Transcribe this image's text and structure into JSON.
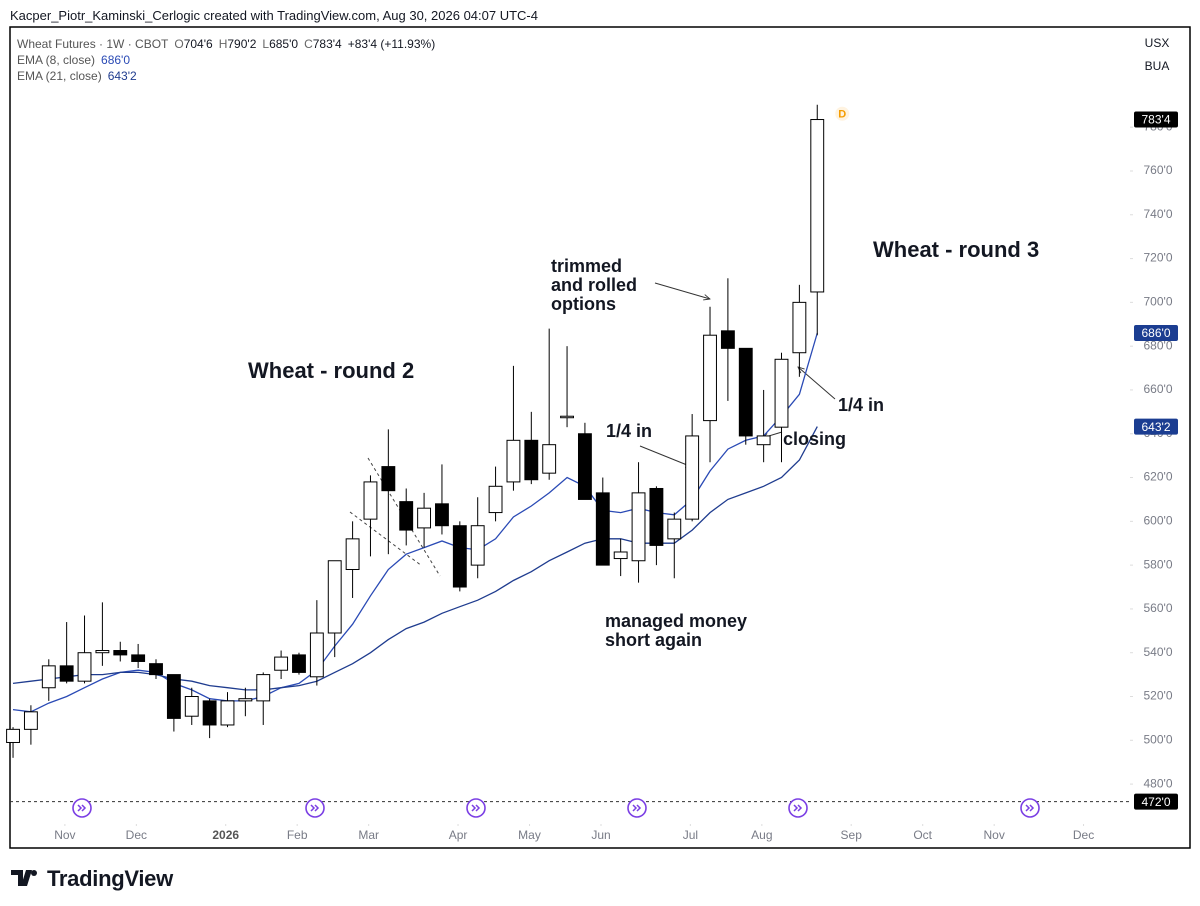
{
  "header": {
    "credit": "Kacper_Piotr_Kaminski_Cerlogic created with TradingView.com, Aug 30, 2026 04:07 UTC-4"
  },
  "chart_data": {
    "type": "candlestick",
    "symbol": "Wheat Futures · 1W · CBOT",
    "ohlc_legend": [
      {
        "key": "O",
        "text": "704'6"
      },
      {
        "key": "H",
        "text": "790'2"
      },
      {
        "key": "L",
        "text": "685'0"
      },
      {
        "key": "C",
        "text": "783'4"
      }
    ],
    "change": "+83'4 (+11.93%)",
    "up_color": "#ffffff",
    "down_color": "#000000",
    "wick_color": "#000000",
    "open": [
      499,
      505,
      524,
      534,
      527,
      540,
      541,
      539,
      535,
      530,
      511,
      518,
      507,
      518,
      518,
      532,
      539,
      529,
      549,
      578,
      601,
      625,
      609,
      597,
      608,
      598,
      580,
      604,
      618,
      637,
      622,
      648,
      640,
      613,
      583,
      582,
      615,
      592,
      601,
      646,
      687,
      679,
      635,
      643,
      677,
      704.75
    ],
    "high": [
      506,
      516,
      537,
      554,
      557,
      563,
      545,
      544,
      537,
      530,
      524,
      519,
      522,
      524,
      531,
      541,
      540,
      564,
      582,
      600,
      621,
      642,
      615,
      613,
      626,
      600,
      611,
      625,
      671,
      650,
      688,
      680,
      645,
      620,
      592,
      627,
      616,
      604,
      649,
      698,
      711,
      679,
      660,
      677,
      708,
      790.25
    ],
    "low": [
      492,
      498,
      518,
      526,
      526,
      534,
      536,
      533,
      528,
      504,
      507,
      501,
      506,
      511,
      507,
      528,
      530,
      525,
      538,
      565,
      584,
      585,
      589,
      588,
      594,
      568,
      574,
      600,
      614,
      617,
      619,
      643,
      610,
      580,
      575,
      572,
      580,
      574,
      600,
      627,
      655,
      635,
      627,
      627,
      666,
      685
    ],
    "close": [
      505,
      513,
      534,
      527,
      540,
      541,
      539,
      536,
      530,
      510,
      520,
      507,
      518,
      519,
      530,
      538,
      531,
      549,
      582,
      592,
      618,
      614,
      596,
      606,
      598,
      570,
      598,
      616,
      637,
      619,
      635,
      648,
      610,
      580,
      586,
      613,
      589,
      601,
      639,
      685,
      679,
      639,
      639,
      674,
      700,
      783.5
    ],
    "lines": [
      {
        "name": "EMA (8, close)",
        "color": "#2a4ab5",
        "last_label": "686'0",
        "values": [
          514,
          513,
          517,
          520,
          524,
          528,
          531,
          532,
          531,
          526,
          523,
          519,
          518,
          518,
          520,
          524,
          526,
          532,
          543,
          553,
          566,
          578,
          585,
          588,
          591,
          588,
          587,
          592,
          602,
          607,
          613,
          620,
          616,
          605,
          604,
          606,
          604,
          603,
          610,
          623,
          633,
          637,
          639,
          648,
          658,
          686
        ]
      },
      {
        "name": "EMA (21, close)",
        "color": "#1f3c8f",
        "last_label": "643'2",
        "values": [
          526,
          527,
          528,
          529,
          530,
          530,
          531,
          531,
          530,
          528,
          527,
          525,
          524,
          523,
          523,
          524,
          525,
          527,
          531,
          535,
          540,
          546,
          551,
          554,
          558,
          561,
          564,
          568,
          573,
          577,
          582,
          586,
          590,
          592,
          592,
          590,
          590,
          590,
          596,
          604,
          610,
          613,
          616,
          620,
          628,
          643.25
        ]
      }
    ],
    "ylim": [
      463.6,
      825.3
    ],
    "yticks": [
      {
        "value": 480,
        "label": "480'0"
      },
      {
        "value": 500,
        "label": "500'0"
      },
      {
        "value": 520,
        "label": "520'0"
      },
      {
        "value": 540,
        "label": "540'0"
      },
      {
        "value": 560,
        "label": "560'0"
      },
      {
        "value": 580,
        "label": "580'0"
      },
      {
        "value": 600,
        "label": "600'0"
      },
      {
        "value": 620,
        "label": "620'0"
      },
      {
        "value": 640,
        "label": "640'0"
      },
      {
        "value": 660,
        "label": "660'0"
      },
      {
        "value": 680,
        "label": "680'0"
      },
      {
        "value": 700,
        "label": "700'0"
      },
      {
        "value": 720,
        "label": "720'0"
      },
      {
        "value": 740,
        "label": "740'0"
      },
      {
        "value": 760,
        "label": "760'0"
      },
      {
        "value": 780,
        "label": "780'0"
      }
    ],
    "xlim": [
      -0.17,
      62.5
    ],
    "xticks": [
      {
        "value": 2.9,
        "label": "Nov"
      },
      {
        "value": 6.9,
        "label": "Dec"
      },
      {
        "value": 11.9,
        "label": "2026"
      },
      {
        "value": 15.9,
        "label": "Feb"
      },
      {
        "value": 19.9,
        "label": "Mar"
      },
      {
        "value": 24.9,
        "label": "Apr"
      },
      {
        "value": 28.9,
        "label": "May"
      },
      {
        "value": 32.9,
        "label": "Jun"
      },
      {
        "value": 37.9,
        "label": "Jul"
      },
      {
        "value": 41.9,
        "label": "Aug"
      },
      {
        "value": 46.9,
        "label": "Sep"
      },
      {
        "value": 50.9,
        "label": "Oct"
      },
      {
        "value": 54.9,
        "label": "Nov"
      },
      {
        "value": 59.9,
        "label": "Dec"
      }
    ],
    "grid": false,
    "price_badges": [
      {
        "value": 783.5,
        "label": "783'4",
        "color": "#000000"
      },
      {
        "value": 686,
        "label": "686'0",
        "color": "#1b3d91"
      },
      {
        "value": 643.25,
        "label": "643'2",
        "color": "#1b3d91"
      },
      {
        "value": 472,
        "label": "472'0",
        "color": "#000000",
        "line": "dashed"
      }
    ],
    "marker_label": "D",
    "toggles": [
      "USX",
      "BUA"
    ],
    "annotations": [
      {
        "lines": [
          "Wheat - round 2"
        ]
      },
      {
        "lines": [
          "Wheat - round 3"
        ]
      },
      {
        "lines": [
          "trimmed",
          "and rolled",
          "options"
        ]
      },
      {
        "lines": [
          "1/4 in"
        ]
      },
      {
        "lines": [
          "1/4 in"
        ]
      },
      {
        "lines": [
          "closing"
        ]
      },
      {
        "lines": [
          "managed money",
          "short again"
        ]
      }
    ]
  },
  "branding": "TradingView"
}
